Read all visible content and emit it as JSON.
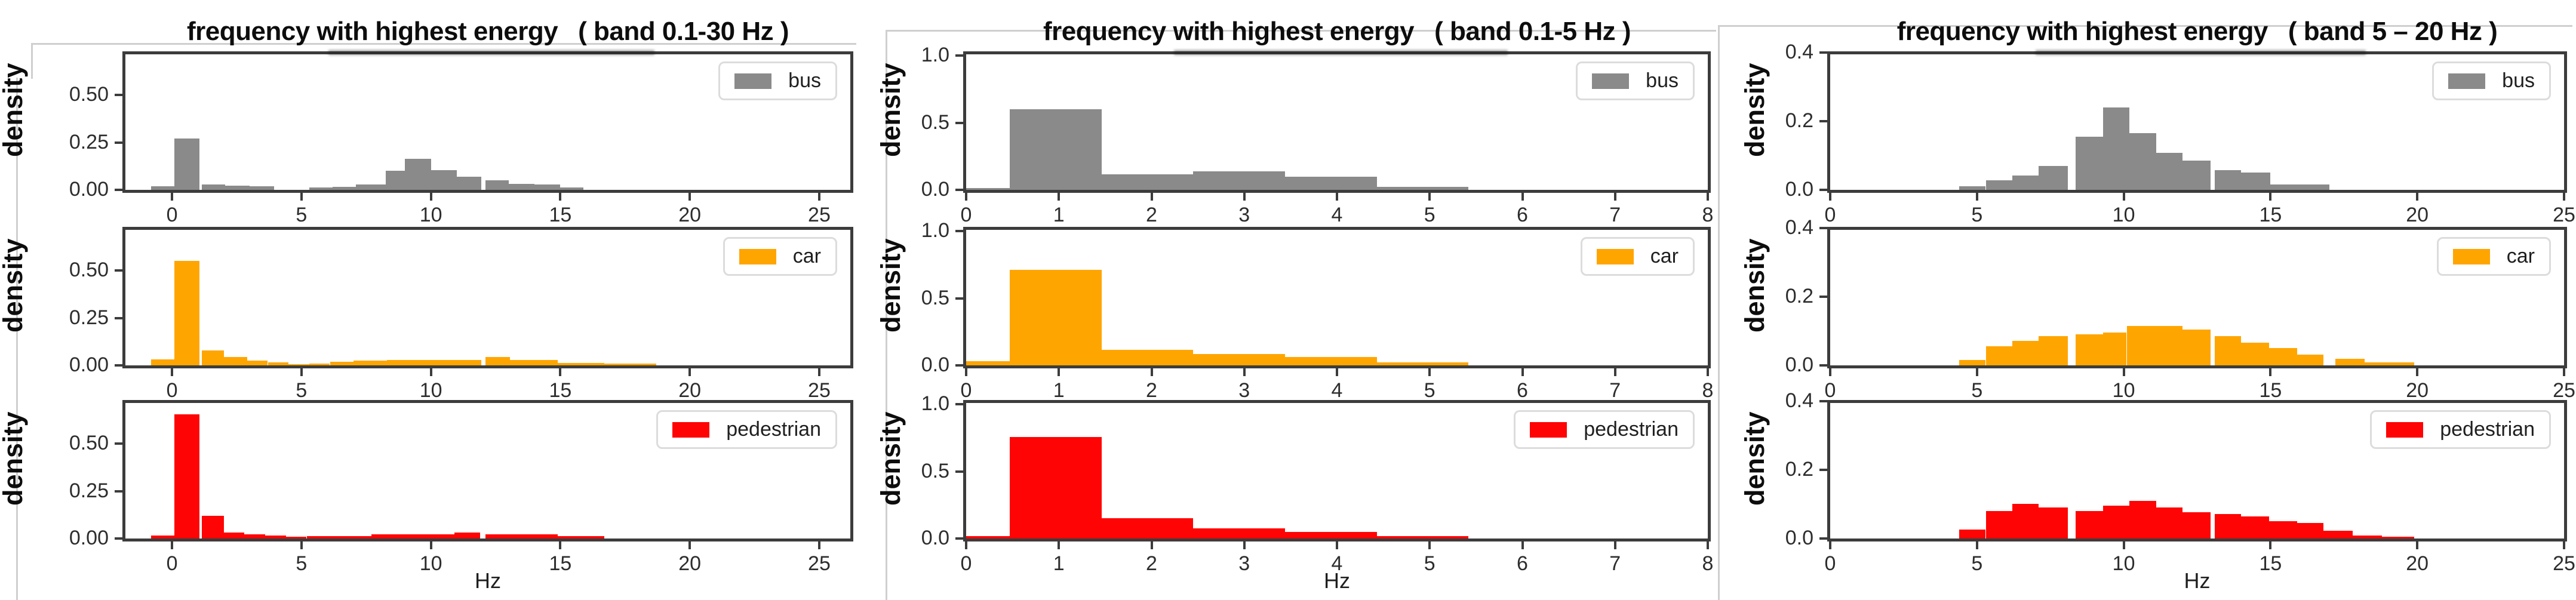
{
  "chart_data": {
    "type": "bar",
    "subtype": "histogram-grid",
    "grid": "3 columns (frequency bands) x 3 rows (vehicle classes), density histograms, no gridlines, legend top-right of each panel",
    "figures": [
      {
        "title_main": "frequency with highest energy",
        "title_band": "( band 0.1-30 Hz )",
        "ylabel": "density",
        "xlabel": "Hz",
        "xlim": [
          -1.8,
          26.2
        ],
        "ymax": 0.715,
        "xticks": [
          0,
          5,
          10,
          15,
          20,
          25
        ],
        "yticks": [
          {
            "label": "0.00",
            "value": 0
          },
          {
            "label": "0.25",
            "value": 0.25
          },
          {
            "label": "0.50",
            "value": 0.5
          }
        ],
        "panels": [
          {
            "legend": "bus",
            "color": "#8a8a8a",
            "bins": [
              [
                -0.8,
                0.1,
                0.02
              ],
              [
                0.1,
                1.05,
                0.27
              ],
              [
                1.15,
                2.05,
                0.03
              ],
              [
                2.05,
                3.0,
                0.022
              ],
              [
                3.0,
                3.95,
                0.02
              ],
              [
                5.3,
                6.2,
                0.012
              ],
              [
                6.2,
                7.1,
                0.016
              ],
              [
                7.1,
                8.25,
                0.03
              ],
              [
                8.25,
                9.0,
                0.1
              ],
              [
                9.0,
                10.0,
                0.165
              ],
              [
                10.0,
                11.0,
                0.105
              ],
              [
                11.0,
                11.95,
                0.07
              ],
              [
                12.1,
                13.0,
                0.05
              ],
              [
                13.0,
                14.0,
                0.032
              ],
              [
                14.0,
                15.0,
                0.028
              ],
              [
                15.0,
                15.9,
                0.012
              ]
            ]
          },
          {
            "legend": "car",
            "color": "#ffa500",
            "bins": [
              [
                -0.8,
                0.1,
                0.032
              ],
              [
                0.1,
                1.05,
                0.55
              ],
              [
                1.15,
                2.0,
                0.08
              ],
              [
                2.0,
                2.9,
                0.045
              ],
              [
                2.9,
                3.7,
                0.025
              ],
              [
                3.7,
                4.5,
                0.015
              ],
              [
                4.5,
                5.3,
                0.008
              ],
              [
                5.3,
                6.1,
                0.01
              ],
              [
                6.1,
                7.0,
                0.018
              ],
              [
                7.0,
                8.3,
                0.024
              ],
              [
                8.3,
                11.95,
                0.03
              ],
              [
                12.1,
                13.05,
                0.045
              ],
              [
                13.05,
                14.9,
                0.03
              ],
              [
                14.9,
                16.7,
                0.014
              ],
              [
                16.7,
                18.7,
                0.009
              ]
            ]
          },
          {
            "legend": "pedestrian",
            "color": "#ff0404",
            "bins": [
              [
                -0.8,
                0.1,
                0.015
              ],
              [
                0.1,
                1.05,
                0.655
              ],
              [
                1.15,
                2.0,
                0.12
              ],
              [
                2.0,
                2.8,
                0.032
              ],
              [
                2.8,
                3.6,
                0.022
              ],
              [
                3.6,
                4.4,
                0.016
              ],
              [
                4.4,
                5.2,
                0.01
              ],
              [
                5.2,
                7.7,
                0.012
              ],
              [
                7.7,
                10.9,
                0.022
              ],
              [
                10.9,
                11.9,
                0.032
              ],
              [
                12.1,
                14.9,
                0.022
              ],
              [
                14.9,
                16.7,
                0.014
              ]
            ]
          }
        ]
      },
      {
        "title_main": "frequency with highest energy",
        "title_band": "( band 0.1-5 Hz )",
        "ylabel": "density",
        "xlabel": "Hz",
        "xlim": [
          0,
          8
        ],
        "ymax": 1.01,
        "xticks": [
          0,
          1,
          2,
          3,
          4,
          5,
          6,
          7,
          8
        ],
        "yticks": [
          {
            "label": "0.0",
            "value": 0
          },
          {
            "label": "0.5",
            "value": 0.5
          },
          {
            "label": "1.0",
            "value": 1.0
          }
        ],
        "panels": [
          {
            "legend": "bus",
            "color": "#8a8a8a",
            "bins": [
              [
                0,
                0.47,
                0.012
              ],
              [
                0.47,
                1.46,
                0.6
              ],
              [
                1.46,
                2.45,
                0.115
              ],
              [
                2.45,
                3.44,
                0.14
              ],
              [
                3.44,
                4.43,
                0.1
              ],
              [
                4.43,
                5.42,
                0.022
              ]
            ]
          },
          {
            "legend": "car",
            "color": "#ffa500",
            "bins": [
              [
                0,
                0.47,
                0.03
              ],
              [
                0.47,
                1.46,
                0.71
              ],
              [
                1.46,
                2.45,
                0.115
              ],
              [
                2.45,
                3.44,
                0.085
              ],
              [
                3.44,
                4.43,
                0.062
              ],
              [
                4.43,
                5.42,
                0.022
              ]
            ]
          },
          {
            "legend": "pedestrian",
            "color": "#ff0404",
            "bins": [
              [
                0,
                0.47,
                0.02
              ],
              [
                0.47,
                1.46,
                0.755
              ],
              [
                1.46,
                2.45,
                0.15
              ],
              [
                2.45,
                3.44,
                0.075
              ],
              [
                3.44,
                4.43,
                0.05
              ],
              [
                4.43,
                5.42,
                0.02
              ]
            ]
          }
        ]
      },
      {
        "title_main": "frequency with highest energy",
        "title_band": "( band 5 – 20 Hz )",
        "ylabel": "density",
        "xlabel": "Hz",
        "xlim": [
          0,
          25
        ],
        "ymax": 0.394,
        "xticks": [
          0,
          5,
          10,
          15,
          20,
          25
        ],
        "yticks": [
          {
            "label": "0.0",
            "value": 0
          },
          {
            "label": "0.2",
            "value": 0.2
          },
          {
            "label": "0.4",
            "value": 0.4
          }
        ],
        "panels": [
          {
            "legend": "bus",
            "color": "#8a8a8a",
            "bins": [
              [
                4.4,
                5.3,
                0.01
              ],
              [
                5.3,
                6.2,
                0.027
              ],
              [
                6.2,
                7.1,
                0.042
              ],
              [
                7.1,
                8.1,
                0.07
              ],
              [
                8.35,
                9.3,
                0.155
              ],
              [
                9.3,
                10.2,
                0.24
              ],
              [
                10.2,
                11.1,
                0.165
              ],
              [
                11.1,
                12.0,
                0.107
              ],
              [
                12.0,
                12.95,
                0.085
              ],
              [
                13.1,
                14.0,
                0.057
              ],
              [
                14.0,
                15.0,
                0.05
              ],
              [
                15.0,
                17.0,
                0.016
              ]
            ]
          },
          {
            "legend": "car",
            "color": "#ffa500",
            "bins": [
              [
                4.4,
                5.3,
                0.016
              ],
              [
                5.3,
                6.2,
                0.056
              ],
              [
                6.2,
                7.1,
                0.072
              ],
              [
                7.1,
                8.1,
                0.086
              ],
              [
                8.35,
                9.3,
                0.09
              ],
              [
                9.3,
                10.1,
                0.096
              ],
              [
                10.1,
                12.0,
                0.114
              ],
              [
                12.0,
                12.95,
                0.105
              ],
              [
                13.1,
                14.0,
                0.085
              ],
              [
                14.0,
                14.95,
                0.066
              ],
              [
                14.95,
                15.9,
                0.05
              ],
              [
                15.9,
                16.8,
                0.032
              ],
              [
                17.2,
                18.2,
                0.02
              ],
              [
                18.2,
                19.9,
                0.008
              ]
            ]
          },
          {
            "legend": "pedestrian",
            "color": "#ff0404",
            "bins": [
              [
                4.4,
                5.3,
                0.026
              ],
              [
                5.3,
                6.2,
                0.08
              ],
              [
                6.2,
                7.1,
                0.1
              ],
              [
                7.1,
                8.1,
                0.09
              ],
              [
                8.35,
                9.3,
                0.08
              ],
              [
                9.3,
                10.2,
                0.096
              ],
              [
                10.2,
                11.1,
                0.11
              ],
              [
                11.1,
                12.0,
                0.09
              ],
              [
                12.0,
                12.95,
                0.076
              ],
              [
                13.1,
                14.0,
                0.072
              ],
              [
                14.0,
                14.95,
                0.065
              ],
              [
                14.95,
                15.9,
                0.05
              ],
              [
                15.9,
                16.8,
                0.045
              ],
              [
                16.8,
                17.8,
                0.022
              ],
              [
                17.8,
                18.8,
                0.008
              ],
              [
                18.8,
                19.9,
                0.005
              ]
            ]
          }
        ]
      }
    ]
  }
}
